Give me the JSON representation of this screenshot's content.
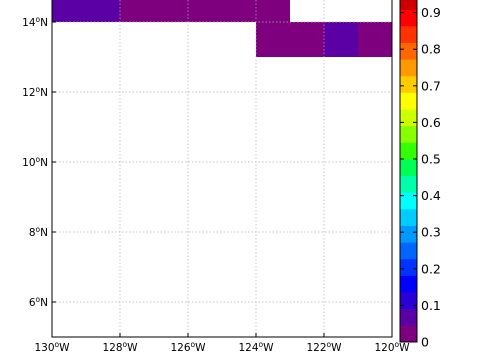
{
  "chart_data": {
    "type": "heatmap",
    "x_range_deg": [
      -130,
      -120
    ],
    "y_range_deg": [
      5,
      14.8
    ],
    "x_ticks": [
      {
        "value": -130,
        "deg": "130",
        "hemi": "W"
      },
      {
        "value": -128,
        "deg": "128",
        "hemi": "W"
      },
      {
        "value": -126,
        "deg": "126",
        "hemi": "W"
      },
      {
        "value": -124,
        "deg": "124",
        "hemi": "W"
      },
      {
        "value": -122,
        "deg": "122",
        "hemi": "W"
      },
      {
        "value": -120,
        "deg": "120",
        "hemi": "W"
      }
    ],
    "y_ticks": [
      {
        "value": 6,
        "deg": "6",
        "hemi": "N"
      },
      {
        "value": 8,
        "deg": "8",
        "hemi": "N"
      },
      {
        "value": 10,
        "deg": "10",
        "hemi": "N"
      },
      {
        "value": 12,
        "deg": "12",
        "hemi": "N"
      },
      {
        "value": 14,
        "deg": "14",
        "hemi": "N"
      }
    ],
    "cells": [
      {
        "lon0": -130,
        "lon1": -128,
        "lat0": 14,
        "lat1": 15,
        "value": 0.05
      },
      {
        "lon0": -128,
        "lon1": -123,
        "lat0": 14,
        "lat1": 15,
        "value": 0.0
      },
      {
        "lon0": -124,
        "lon1": -122,
        "lat0": 13,
        "lat1": 14,
        "value": 0.0
      },
      {
        "lon0": -122,
        "lon1": -121,
        "lat0": 13,
        "lat1": 14,
        "value": 0.05
      },
      {
        "lon0": -121,
        "lon1": -120,
        "lat0": 13,
        "lat1": 14,
        "value": 0.0
      }
    ],
    "grid": true,
    "colorbar": {
      "placement": "right",
      "range": [
        0,
        1
      ],
      "tick_values": [
        0,
        0.1,
        0.2,
        0.3,
        0.4,
        0.5,
        0.6,
        0.7,
        0.8,
        0.9
      ],
      "tick_labels": [
        "0",
        "0.1",
        "0.2",
        "0.3",
        "0.4",
        "0.5",
        "0.6",
        "0.7",
        "0.8",
        "0.9"
      ],
      "colors": [
        "#7f007f",
        "#5a00a5",
        "#2a00d5",
        "#0000ff",
        "#0033ff",
        "#0066ff",
        "#0099ff",
        "#00ccff",
        "#00ffff",
        "#00ffaa",
        "#00ff55",
        "#33ff00",
        "#88ff00",
        "#ccff00",
        "#ffff00",
        "#ffcc00",
        "#ff9900",
        "#ff6600",
        "#ff3300",
        "#ff0000",
        "#cc0000",
        "#990000"
      ]
    }
  }
}
